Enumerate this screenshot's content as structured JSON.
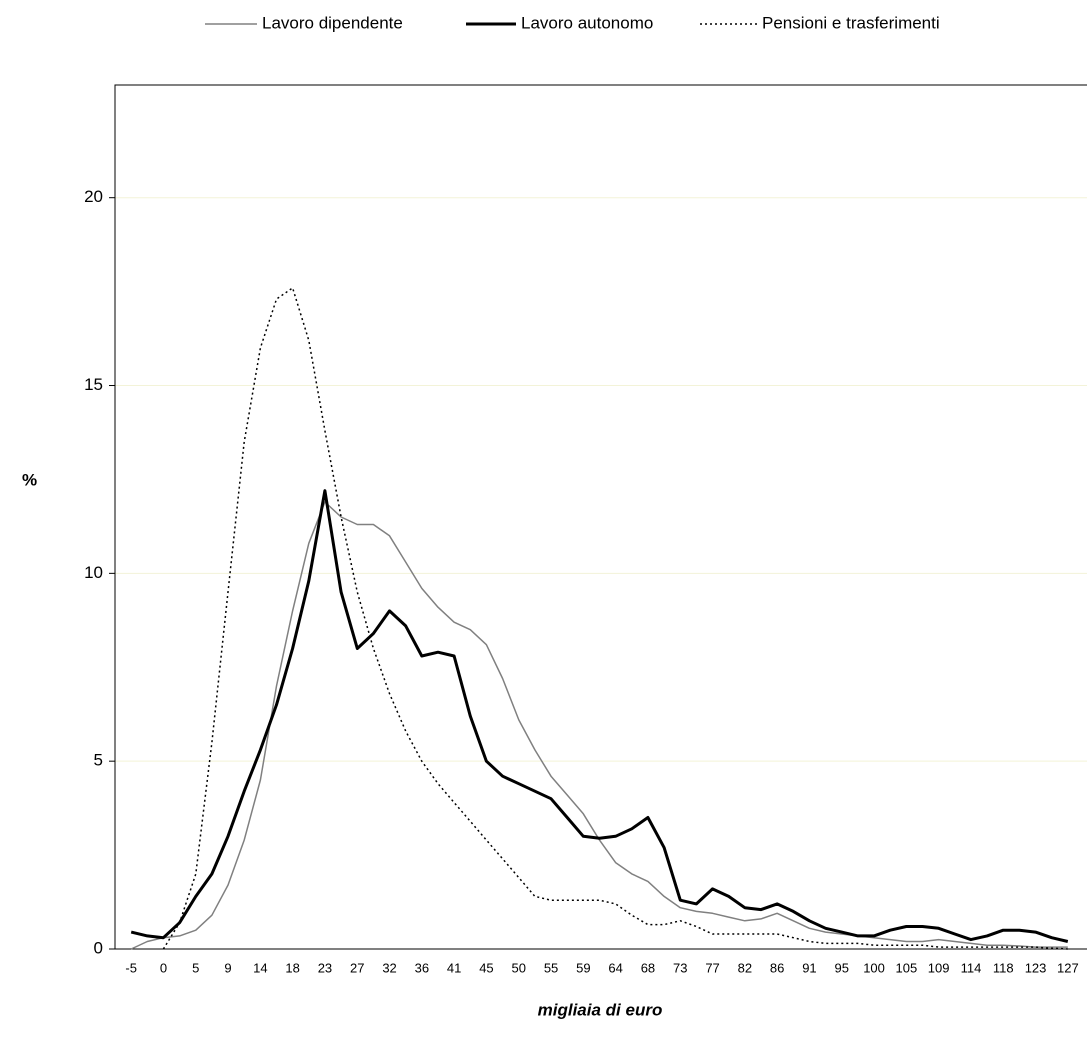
{
  "chart_data": {
    "type": "line",
    "x_label": "migliaia di euro",
    "y_label": "%",
    "categories": [
      "-5",
      null,
      "0",
      null,
      "5",
      null,
      "9",
      null,
      "14",
      null,
      "18",
      null,
      "23",
      null,
      "27",
      null,
      "32",
      null,
      "36",
      null,
      "41",
      null,
      "45",
      null,
      "50",
      null,
      "55",
      null,
      "59",
      null,
      "64",
      null,
      "68",
      null,
      "73",
      null,
      "77",
      null,
      "82",
      null,
      "86",
      null,
      "91",
      null,
      "95",
      null,
      "100",
      null,
      "105",
      null,
      "109",
      null,
      "114",
      null,
      "118",
      null,
      "123",
      null,
      "127"
    ],
    "ylim": [
      0,
      23
    ],
    "yticks": [
      0,
      5,
      10,
      15,
      20
    ],
    "grid": true,
    "grid_color": "#f3f3d8",
    "series": [
      {
        "name": "Lavoro dipendente",
        "color": "#808080",
        "width": 1.5,
        "dash": "solid",
        "values": [
          0.0,
          0.2,
          0.3,
          0.35,
          0.5,
          0.9,
          1.7,
          2.9,
          4.5,
          7.0,
          9.0,
          10.8,
          11.9,
          11.5,
          11.3,
          11.3,
          11.0,
          10.3,
          9.6,
          9.1,
          8.7,
          8.5,
          8.1,
          7.2,
          6.1,
          5.3,
          4.6,
          4.1,
          3.6,
          2.9,
          2.3,
          2.0,
          1.8,
          1.4,
          1.1,
          1.0,
          0.95,
          0.85,
          0.75,
          0.8,
          0.95,
          0.75,
          0.55,
          0.45,
          0.4,
          0.35,
          0.3,
          0.25,
          0.2,
          0.2,
          0.25,
          0.2,
          0.15,
          0.1,
          0.1,
          0.08,
          0.05,
          0.05,
          0.05
        ]
      },
      {
        "name": "Lavoro autonomo",
        "color": "#000000",
        "width": 3,
        "dash": "solid",
        "values": [
          0.45,
          0.35,
          0.3,
          0.7,
          1.4,
          2.0,
          3.0,
          4.2,
          5.3,
          6.5,
          8.0,
          9.8,
          12.2,
          9.5,
          8.0,
          8.4,
          9.0,
          8.6,
          7.8,
          7.9,
          7.8,
          6.2,
          5.0,
          4.6,
          4.4,
          4.2,
          4.0,
          3.5,
          3.0,
          2.95,
          3.0,
          3.2,
          3.5,
          2.7,
          1.3,
          1.2,
          1.6,
          1.4,
          1.1,
          1.05,
          1.2,
          1.0,
          0.75,
          0.55,
          0.45,
          0.35,
          0.35,
          0.5,
          0.6,
          0.6,
          0.55,
          0.4,
          0.25,
          0.35,
          0.5,
          0.5,
          0.45,
          0.3,
          0.2
        ]
      },
      {
        "name": "Pensioni e trasferimenti",
        "color": "#000000",
        "width": 1.5,
        "dash": "dotted",
        "values": [
          null,
          null,
          0.0,
          0.7,
          2.0,
          5.5,
          9.5,
          13.5,
          16.0,
          17.3,
          17.6,
          16.2,
          13.8,
          11.5,
          9.5,
          8.0,
          6.8,
          5.8,
          5.0,
          4.4,
          3.9,
          3.4,
          2.9,
          2.4,
          1.9,
          1.4,
          1.3,
          1.3,
          1.3,
          1.3,
          1.2,
          0.9,
          0.65,
          0.65,
          0.75,
          0.6,
          0.4,
          0.4,
          0.4,
          0.4,
          0.4,
          0.3,
          0.2,
          0.15,
          0.15,
          0.15,
          0.1,
          0.1,
          0.1,
          0.1,
          0.05,
          0.05,
          0.05,
          0.05,
          0.05,
          0.05,
          0.05,
          0.02,
          0.0
        ]
      }
    ]
  }
}
